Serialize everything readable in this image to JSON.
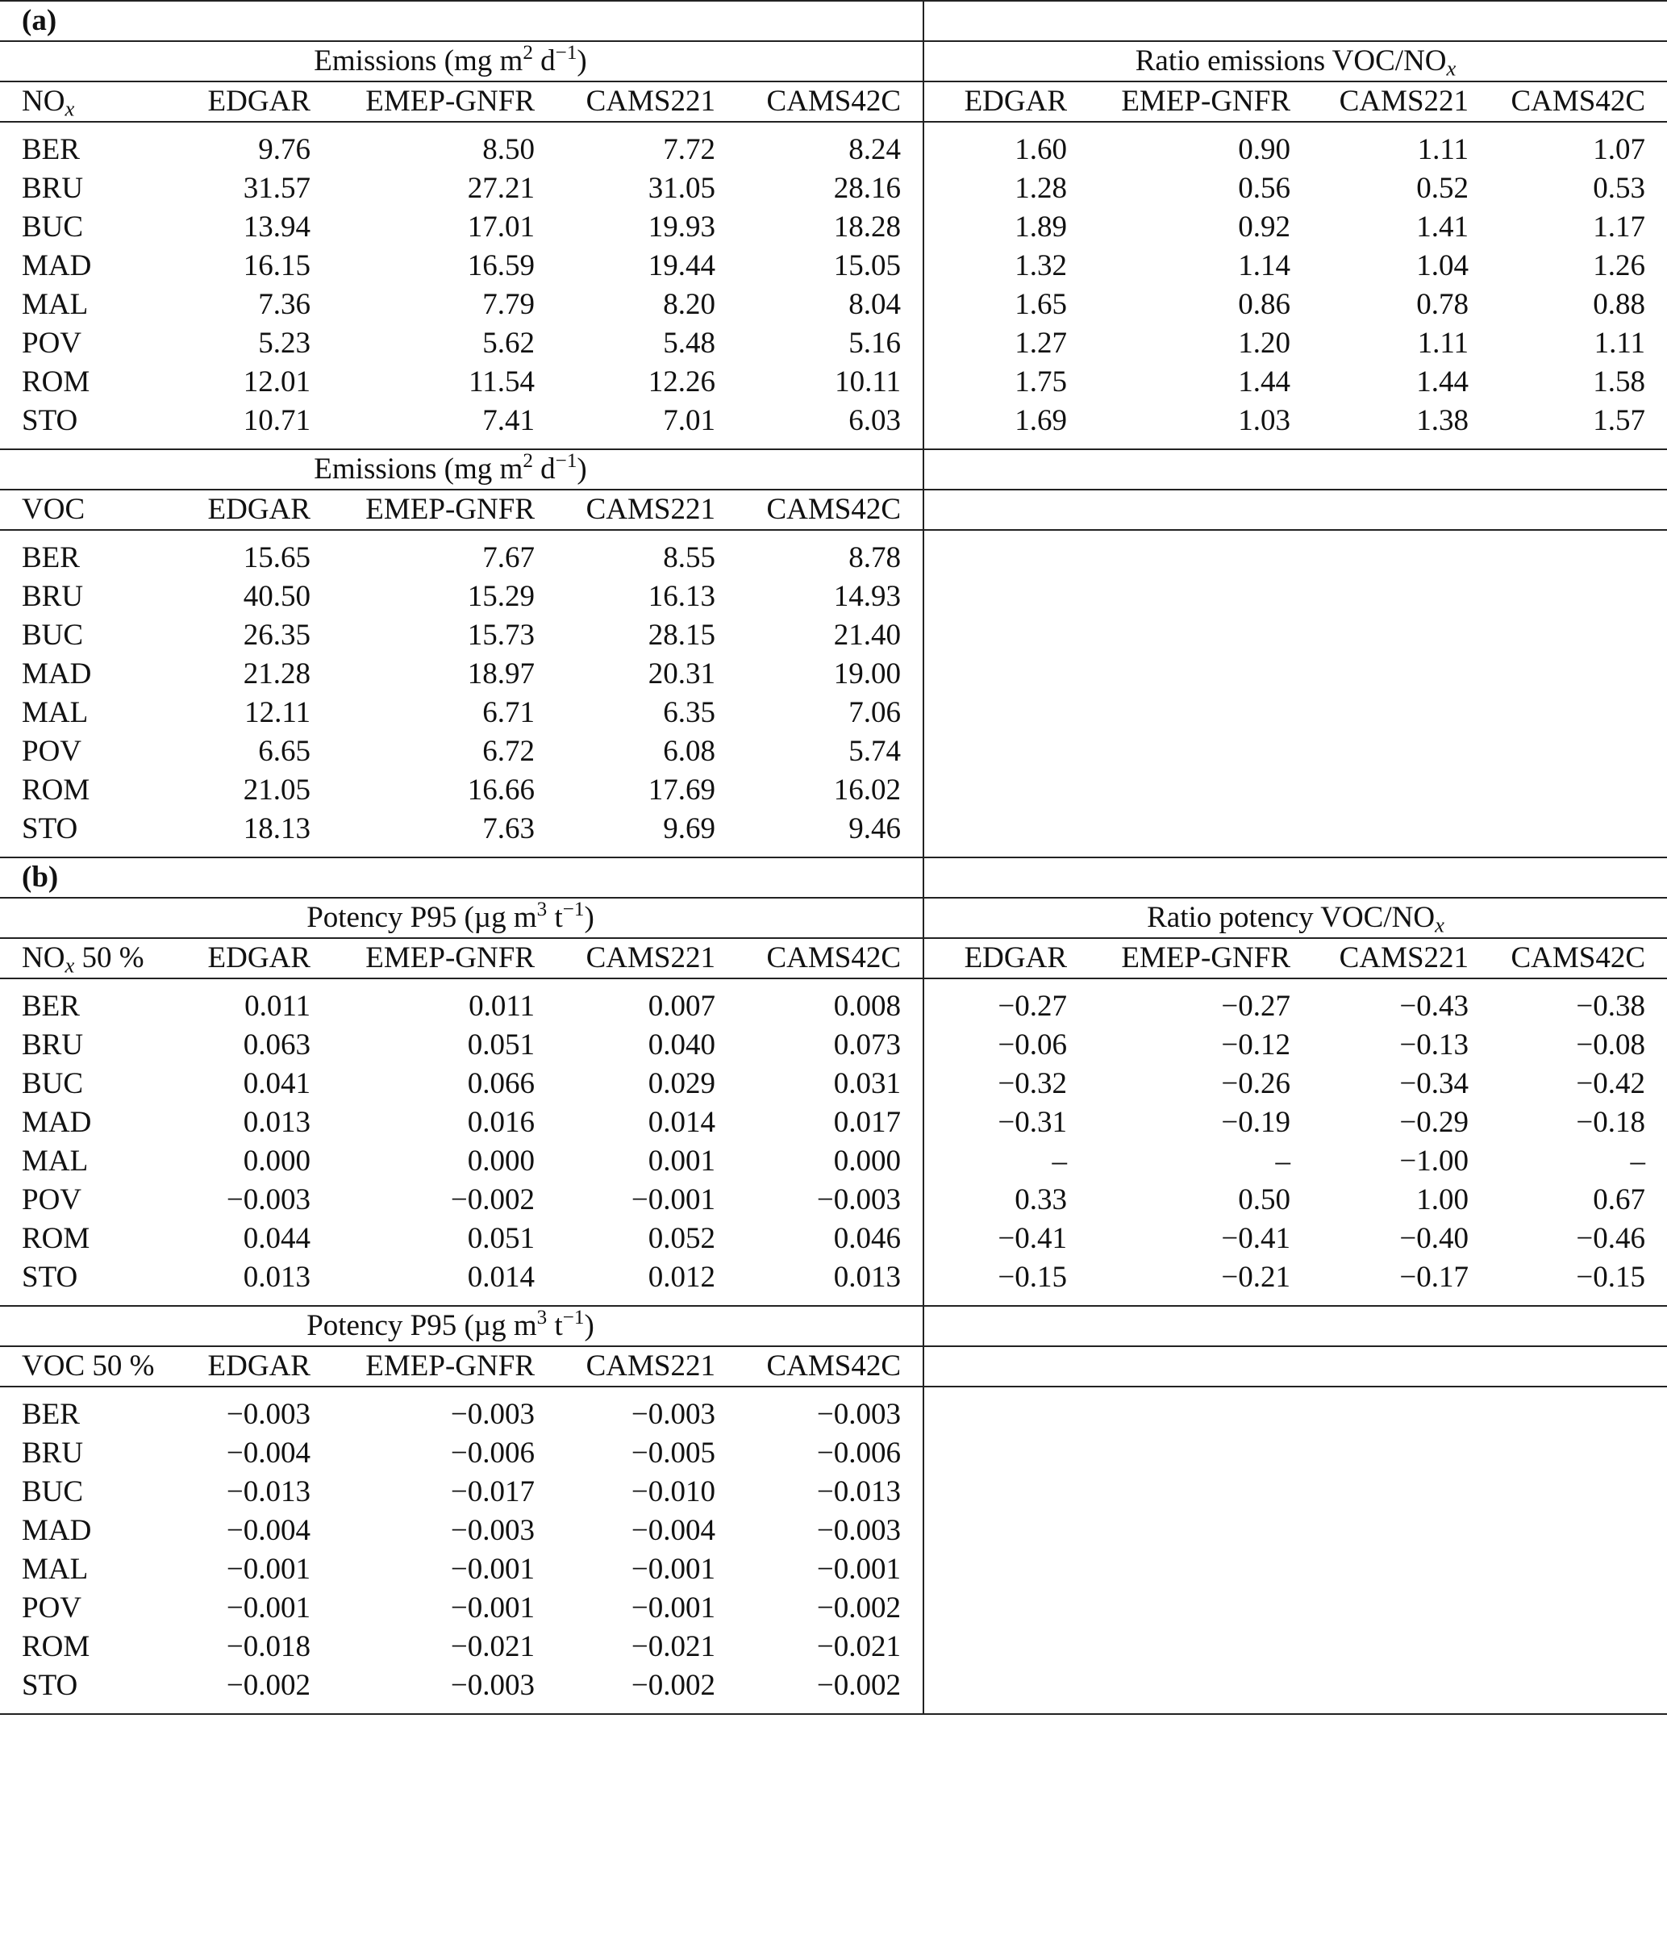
{
  "panel_a": {
    "label": "(a)",
    "nox_group_title": "Emissions (mg m2 d−1)",
    "ratio_group_title": "Ratio emissions VOC/NOx",
    "nox_corner": "NOx",
    "columns": [
      "EDGAR",
      "EMEP-GNFR",
      "CAMS221",
      "CAMS42C"
    ],
    "nox_rows": [
      {
        "city": "BER",
        "values": [
          "9.76",
          "8.50",
          "7.72",
          "8.24"
        ],
        "ratio": [
          "1.60",
          "0.90",
          "1.11",
          "1.07"
        ]
      },
      {
        "city": "BRU",
        "values": [
          "31.57",
          "27.21",
          "31.05",
          "28.16"
        ],
        "ratio": [
          "1.28",
          "0.56",
          "0.52",
          "0.53"
        ]
      },
      {
        "city": "BUC",
        "values": [
          "13.94",
          "17.01",
          "19.93",
          "18.28"
        ],
        "ratio": [
          "1.89",
          "0.92",
          "1.41",
          "1.17"
        ]
      },
      {
        "city": "MAD",
        "values": [
          "16.15",
          "16.59",
          "19.44",
          "15.05"
        ],
        "ratio": [
          "1.32",
          "1.14",
          "1.04",
          "1.26"
        ]
      },
      {
        "city": "MAL",
        "values": [
          "7.36",
          "7.79",
          "8.20",
          "8.04"
        ],
        "ratio": [
          "1.65",
          "0.86",
          "0.78",
          "0.88"
        ]
      },
      {
        "city": "POV",
        "values": [
          "5.23",
          "5.62",
          "5.48",
          "5.16"
        ],
        "ratio": [
          "1.27",
          "1.20",
          "1.11",
          "1.11"
        ]
      },
      {
        "city": "ROM",
        "values": [
          "12.01",
          "11.54",
          "12.26",
          "10.11"
        ],
        "ratio": [
          "1.75",
          "1.44",
          "1.44",
          "1.58"
        ]
      },
      {
        "city": "STO",
        "values": [
          "10.71",
          "7.41",
          "7.01",
          "6.03"
        ],
        "ratio": [
          "1.69",
          "1.03",
          "1.38",
          "1.57"
        ]
      }
    ],
    "voc_group_title": "Emissions (mg m2 d−1)",
    "voc_corner": "VOC",
    "voc_rows": [
      {
        "city": "BER",
        "values": [
          "15.65",
          "7.67",
          "8.55",
          "8.78"
        ]
      },
      {
        "city": "BRU",
        "values": [
          "40.50",
          "15.29",
          "16.13",
          "14.93"
        ]
      },
      {
        "city": "BUC",
        "values": [
          "26.35",
          "15.73",
          "28.15",
          "21.40"
        ]
      },
      {
        "city": "MAD",
        "values": [
          "21.28",
          "18.97",
          "20.31",
          "19.00"
        ]
      },
      {
        "city": "MAL",
        "values": [
          "12.11",
          "6.71",
          "6.35",
          "7.06"
        ]
      },
      {
        "city": "POV",
        "values": [
          "6.65",
          "6.72",
          "6.08",
          "5.74"
        ]
      },
      {
        "city": "ROM",
        "values": [
          "21.05",
          "16.66",
          "17.69",
          "16.02"
        ]
      },
      {
        "city": "STO",
        "values": [
          "18.13",
          "7.63",
          "9.69",
          "9.46"
        ]
      }
    ]
  },
  "panel_b": {
    "label": "(b)",
    "nox_group_title": "Potency P95 (µg m3 t−1)",
    "ratio_group_title": "Ratio potency VOC/NOx",
    "nox_corner": "NOx 50 %",
    "columns": [
      "EDGAR",
      "EMEP-GNFR",
      "CAMS221",
      "CAMS42C"
    ],
    "nox_rows": [
      {
        "city": "BER",
        "values": [
          "0.011",
          "0.011",
          "0.007",
          "0.008"
        ],
        "ratio": [
          "−0.27",
          "−0.27",
          "−0.43",
          "−0.38"
        ]
      },
      {
        "city": "BRU",
        "values": [
          "0.063",
          "0.051",
          "0.040",
          "0.073"
        ],
        "ratio": [
          "−0.06",
          "−0.12",
          "−0.13",
          "−0.08"
        ]
      },
      {
        "city": "BUC",
        "values": [
          "0.041",
          "0.066",
          "0.029",
          "0.031"
        ],
        "ratio": [
          "−0.32",
          "−0.26",
          "−0.34",
          "−0.42"
        ]
      },
      {
        "city": "MAD",
        "values": [
          "0.013",
          "0.016",
          "0.014",
          "0.017"
        ],
        "ratio": [
          "−0.31",
          "−0.19",
          "−0.29",
          "−0.18"
        ]
      },
      {
        "city": "MAL",
        "values": [
          "0.000",
          "0.000",
          "0.001",
          "0.000"
        ],
        "ratio": [
          "–",
          "–",
          "−1.00",
          "–"
        ]
      },
      {
        "city": "POV",
        "values": [
          "−0.003",
          "−0.002",
          "−0.001",
          "−0.003"
        ],
        "ratio": [
          "0.33",
          "0.50",
          "1.00",
          "0.67"
        ]
      },
      {
        "city": "ROM",
        "values": [
          "0.044",
          "0.051",
          "0.052",
          "0.046"
        ],
        "ratio": [
          "−0.41",
          "−0.41",
          "−0.40",
          "−0.46"
        ]
      },
      {
        "city": "STO",
        "values": [
          "0.013",
          "0.014",
          "0.012",
          "0.013"
        ],
        "ratio": [
          "−0.15",
          "−0.21",
          "−0.17",
          "−0.15"
        ]
      }
    ],
    "voc_group_title": "Potency P95 (µg m3 t−1)",
    "voc_corner": "VOC 50 %",
    "voc_rows": [
      {
        "city": "BER",
        "values": [
          "−0.003",
          "−0.003",
          "−0.003",
          "−0.003"
        ]
      },
      {
        "city": "BRU",
        "values": [
          "−0.004",
          "−0.006",
          "−0.005",
          "−0.006"
        ]
      },
      {
        "city": "BUC",
        "values": [
          "−0.013",
          "−0.017",
          "−0.010",
          "−0.013"
        ]
      },
      {
        "city": "MAD",
        "values": [
          "−0.004",
          "−0.003",
          "−0.004",
          "−0.003"
        ]
      },
      {
        "city": "MAL",
        "values": [
          "−0.001",
          "−0.001",
          "−0.001",
          "−0.001"
        ]
      },
      {
        "city": "POV",
        "values": [
          "−0.001",
          "−0.001",
          "−0.001",
          "−0.002"
        ]
      },
      {
        "city": "ROM",
        "values": [
          "−0.018",
          "−0.021",
          "−0.021",
          "−0.021"
        ]
      },
      {
        "city": "STO",
        "values": [
          "−0.002",
          "−0.003",
          "−0.002",
          "−0.002"
        ]
      }
    ]
  }
}
